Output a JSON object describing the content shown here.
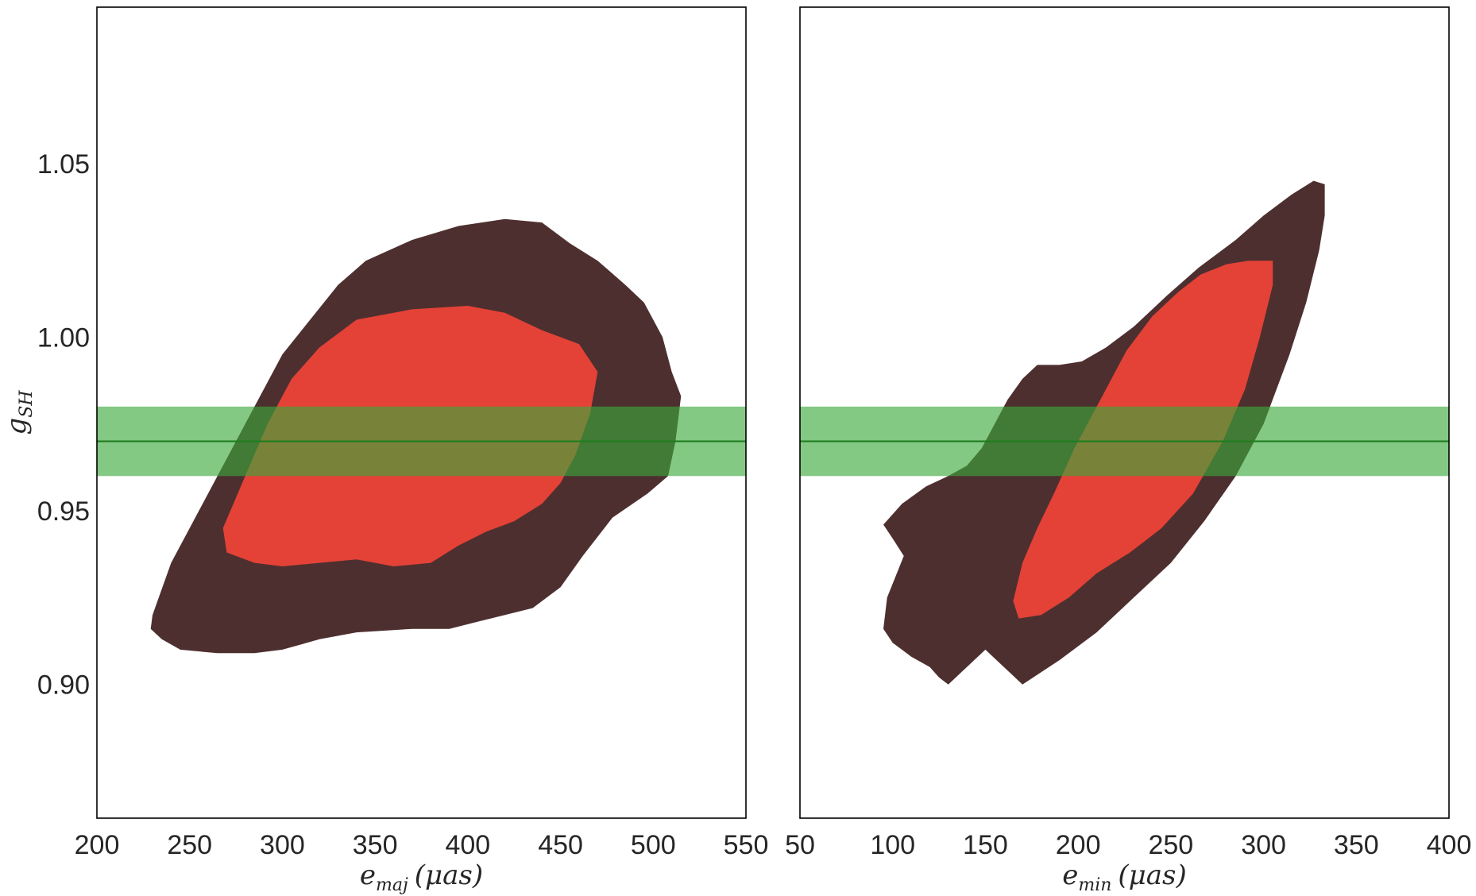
{
  "chart_data": [
    {
      "type": "contour",
      "panel": "left",
      "xlabel": {
        "main": "e",
        "sub": "maj",
        "unit": "(μas)"
      },
      "ylabel": {
        "main": "g",
        "sub": "SH"
      },
      "xlim": [
        200,
        550
      ],
      "ylim": [
        0.8615,
        1.095
      ],
      "xticks": [
        "200",
        "250",
        "300",
        "350",
        "400",
        "450",
        "500",
        "550"
      ],
      "yticks": [
        "0.90",
        "0.95",
        "1.00",
        "1.05"
      ],
      "reference": {
        "value": 0.97,
        "band": [
          0.96,
          0.98
        ]
      },
      "contours": {
        "outer": [
          [
            230,
            0.92
          ],
          [
            240,
            0.935
          ],
          [
            255,
            0.95
          ],
          [
            270,
            0.965
          ],
          [
            285,
            0.98
          ],
          [
            300,
            0.995
          ],
          [
            315,
            1.005
          ],
          [
            330,
            1.015
          ],
          [
            345,
            1.022
          ],
          [
            370,
            1.028
          ],
          [
            395,
            1.032
          ],
          [
            420,
            1.034
          ],
          [
            440,
            1.033
          ],
          [
            455,
            1.027
          ],
          [
            470,
            1.022
          ],
          [
            485,
            1.015
          ],
          [
            495,
            1.01
          ],
          [
            505,
            1.0
          ],
          [
            510,
            0.99
          ],
          [
            515,
            0.983
          ],
          [
            512,
            0.97
          ],
          [
            508,
            0.96
          ],
          [
            497,
            0.955
          ],
          [
            478,
            0.948
          ],
          [
            462,
            0.937
          ],
          [
            450,
            0.928
          ],
          [
            435,
            0.922
          ],
          [
            420,
            0.92
          ],
          [
            405,
            0.918
          ],
          [
            390,
            0.916
          ],
          [
            370,
            0.916
          ],
          [
            340,
            0.915
          ],
          [
            320,
            0.913
          ],
          [
            300,
            0.91
          ],
          [
            285,
            0.909
          ],
          [
            265,
            0.909
          ],
          [
            245,
            0.91
          ],
          [
            235,
            0.913
          ],
          [
            229,
            0.916
          ]
        ],
        "inner": [
          [
            268,
            0.945
          ],
          [
            280,
            0.96
          ],
          [
            292,
            0.975
          ],
          [
            305,
            0.988
          ],
          [
            320,
            0.997
          ],
          [
            340,
            1.005
          ],
          [
            370,
            1.008
          ],
          [
            400,
            1.009
          ],
          [
            420,
            1.007
          ],
          [
            440,
            1.002
          ],
          [
            460,
            0.998
          ],
          [
            470,
            0.99
          ],
          [
            466,
            0.978
          ],
          [
            458,
            0.966
          ],
          [
            450,
            0.958
          ],
          [
            440,
            0.952
          ],
          [
            425,
            0.947
          ],
          [
            410,
            0.944
          ],
          [
            395,
            0.94
          ],
          [
            380,
            0.935
          ],
          [
            360,
            0.934
          ],
          [
            340,
            0.936
          ],
          [
            320,
            0.935
          ],
          [
            300,
            0.934
          ],
          [
            285,
            0.935
          ],
          [
            270,
            0.938
          ]
        ]
      }
    },
    {
      "type": "contour",
      "panel": "right",
      "xlabel": {
        "main": "e",
        "sub": "min",
        "unit": "(μas)"
      },
      "ylabel": null,
      "xlim": [
        50,
        400
      ],
      "ylim": [
        0.8615,
        1.095
      ],
      "xticks": [
        "50",
        "100",
        "150",
        "200",
        "250",
        "300",
        "350",
        "400"
      ],
      "yticks": [],
      "reference": {
        "value": 0.97,
        "band": [
          0.96,
          0.98
        ]
      },
      "contours": {
        "outer": [
          [
            95,
            0.946
          ],
          [
            105,
            0.952
          ],
          [
            118,
            0.957
          ],
          [
            130,
            0.96
          ],
          [
            140,
            0.963
          ],
          [
            148,
            0.968
          ],
          [
            155,
            0.975
          ],
          [
            162,
            0.982
          ],
          [
            170,
            0.988
          ],
          [
            178,
            0.992
          ],
          [
            190,
            0.992
          ],
          [
            202,
            0.993
          ],
          [
            215,
            0.997
          ],
          [
            230,
            1.003
          ],
          [
            248,
            1.012
          ],
          [
            265,
            1.02
          ],
          [
            285,
            1.028
          ],
          [
            300,
            1.035
          ],
          [
            315,
            1.041
          ],
          [
            327,
            1.045
          ],
          [
            333,
            1.044
          ],
          [
            333,
            1.035
          ],
          [
            330,
            1.025
          ],
          [
            323,
            1.01
          ],
          [
            314,
            0.995
          ],
          [
            300,
            0.975
          ],
          [
            285,
            0.96
          ],
          [
            268,
            0.947
          ],
          [
            250,
            0.935
          ],
          [
            230,
            0.925
          ],
          [
            210,
            0.915
          ],
          [
            190,
            0.907
          ],
          [
            170,
            0.9
          ],
          [
            150,
            0.91
          ],
          [
            130,
            0.9
          ],
          [
            125,
            0.902
          ],
          [
            120,
            0.905
          ],
          [
            110,
            0.908
          ],
          [
            100,
            0.912
          ],
          [
            95,
            0.916
          ],
          [
            97,
            0.925
          ],
          [
            103,
            0.933
          ],
          [
            106,
            0.937
          ],
          [
            100,
            0.942
          ]
        ],
        "inner": [
          [
            165,
            0.924
          ],
          [
            170,
            0.935
          ],
          [
            178,
            0.945
          ],
          [
            187,
            0.955
          ],
          [
            198,
            0.968
          ],
          [
            212,
            0.982
          ],
          [
            226,
            0.996
          ],
          [
            240,
            1.006
          ],
          [
            254,
            1.013
          ],
          [
            266,
            1.018
          ],
          [
            280,
            1.021
          ],
          [
            292,
            1.022
          ],
          [
            305,
            1.022
          ],
          [
            305,
            1.015
          ],
          [
            298,
            1.0
          ],
          [
            290,
            0.985
          ],
          [
            278,
            0.97
          ],
          [
            262,
            0.955
          ],
          [
            245,
            0.945
          ],
          [
            228,
            0.938
          ],
          [
            210,
            0.932
          ],
          [
            195,
            0.925
          ],
          [
            180,
            0.92
          ],
          [
            168,
            0.919
          ]
        ]
      }
    }
  ],
  "colors": {
    "outer": "#4e2f2f",
    "inner": "#e44237",
    "band": "#3aa83a",
    "line": "#1e7d1e",
    "frame": "#000000"
  }
}
